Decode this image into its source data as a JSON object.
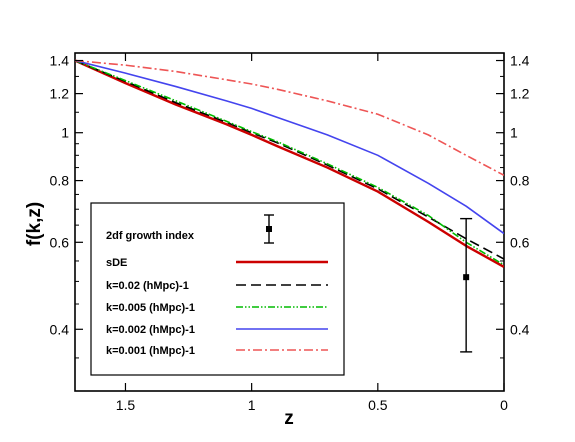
{
  "chart_data": {
    "type": "line",
    "xlabel": "z",
    "ylabel": "f(k,z)",
    "xlim": [
      1.7,
      0.0
    ],
    "ylim": [
      0.3,
      1.45
    ],
    "y_scale": "log",
    "x_ticks": [
      1.5,
      1,
      0.5,
      0
    ],
    "x_tick_labels": [
      "1.5",
      "1",
      "0.5",
      "0"
    ],
    "y_ticks": [
      1.4,
      1.2,
      1,
      0.8,
      0.6,
      0.4
    ],
    "y_tick_labels": [
      "1.4",
      "1.2",
      "1",
      "0.8",
      "0.6",
      "0.4"
    ],
    "legend_placement": "lower-left",
    "series": [
      {
        "name": "sDE",
        "color": "#cc0000",
        "style": "solid",
        "x": [
          1.7,
          1.5,
          1.3,
          1.1,
          1.0,
          0.9,
          0.7,
          0.5,
          0.3,
          0.15,
          0.0
        ],
        "y": [
          1.4,
          1.26,
          1.14,
          1.04,
          0.99,
          0.94,
          0.85,
          0.76,
          0.66,
          0.59,
          0.535
        ]
      },
      {
        "name": "k=0.02    (hMpc)-1",
        "color": "#000000",
        "style": "dashed",
        "x": [
          1.7,
          1.5,
          1.3,
          1.1,
          1.0,
          0.9,
          0.7,
          0.5,
          0.3,
          0.15,
          0.0
        ],
        "y": [
          1.4,
          1.27,
          1.15,
          1.05,
          1.0,
          0.955,
          0.86,
          0.77,
          0.675,
          0.61,
          0.555
        ]
      },
      {
        "name": "k=0.005  (hMpc)-1",
        "color": "#00bb00",
        "style": "dashdotdot",
        "x": [
          1.7,
          1.5,
          1.3,
          1.1,
          1.0,
          0.9,
          0.7,
          0.5,
          0.3,
          0.15,
          0.0
        ],
        "y": [
          1.4,
          1.275,
          1.16,
          1.055,
          1.005,
          0.96,
          0.865,
          0.775,
          0.68,
          0.6,
          0.54
        ]
      },
      {
        "name": "k=0.002  (hMpc)-1",
        "color": "#4444ee",
        "style": "solid",
        "x": [
          1.7,
          1.5,
          1.3,
          1.1,
          1.0,
          0.9,
          0.7,
          0.5,
          0.3,
          0.15,
          0.0
        ],
        "y": [
          1.4,
          1.32,
          1.24,
          1.16,
          1.12,
          1.075,
          0.99,
          0.9,
          0.79,
          0.71,
          0.625
        ]
      },
      {
        "name": "k=0.001  (hMpc)-1",
        "color": "#ee5555",
        "style": "dashdot",
        "x": [
          1.7,
          1.5,
          1.3,
          1.1,
          1.0,
          0.9,
          0.7,
          0.5,
          0.3,
          0.15,
          0.0
        ],
        "y": [
          1.4,
          1.37,
          1.33,
          1.28,
          1.255,
          1.225,
          1.16,
          1.09,
          0.99,
          0.9,
          0.82
        ]
      }
    ],
    "observations": {
      "name": "2df growth index",
      "points": [
        {
          "x": 0.15,
          "y": 0.51,
          "y_err_low": 0.36,
          "y_err_high": 0.67
        }
      ]
    }
  }
}
